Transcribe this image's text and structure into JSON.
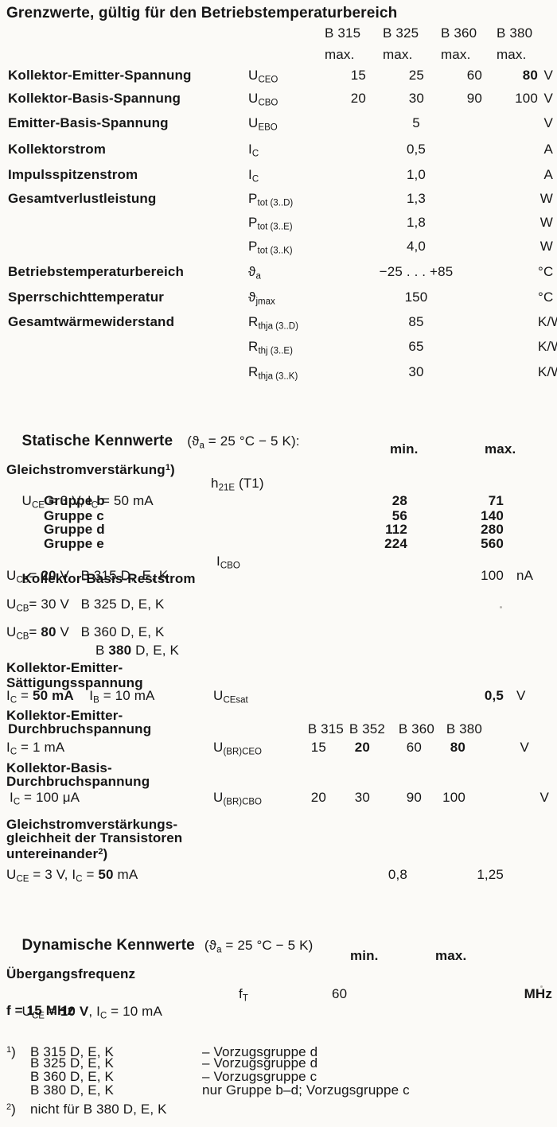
{
  "g": {
    "title": "Grenzwerte, gültig für den Betriebstemperaturbereich",
    "cols": [
      "B 315",
      "B 325",
      "B 360",
      "B 380"
    ],
    "max_labels": [
      "max.",
      "max.",
      "max.",
      "max."
    ],
    "rows": [
      {
        "label": "Kollektor-Emitter-Spannung",
        "sym": "U_{CEO}",
        "v1": "15",
        "v2": "25",
        "v3": "60",
        "v4": "*{80}",
        "unit": "V"
      },
      {
        "label": "Kollektor-Basis-Spannung",
        "sym": "U_{CBO}",
        "v1": "20",
        "v2": "30",
        "v3": "90",
        "v4": "100",
        "unit": "V"
      },
      {
        "label": "Emitter-Basis-Spannung",
        "sym": "U_{EBO}",
        "c": "5",
        "unit": "V"
      },
      {
        "label": "Kollektorstrom",
        "sym": "I_{C}",
        "c": "0,5",
        "unit": "A"
      },
      {
        "label": "Impulsspitzenstrom",
        "sym": "I_{C}",
        "c": "1,0",
        "unit": "A"
      },
      {
        "label": "Gesamtverlustleistung",
        "sym": "P_{tot (3..D)}",
        "c": "1,3",
        "unit": "W"
      },
      {
        "label": "",
        "sym": "P_{tot (3..E)}",
        "c": "1,8",
        "unit": "W"
      },
      {
        "label": "",
        "sym": "P_{tot (3..K)}",
        "c": "4,0",
        "unit": "W"
      },
      {
        "label": "Betriebstemperaturbereich",
        "sym": "ϑ_{a}",
        "c": "−25 . . . +85",
        "unit": "°C"
      },
      {
        "label": "Sperrschichttemperatur",
        "sym": "ϑ_{jmax}",
        "c": "150",
        "unit": "°C"
      },
      {
        "label": "Gesamtwärmewiderstand",
        "sym": "R_{thja (3..D)}",
        "c": "85",
        "unit": "K/W"
      },
      {
        "label": "",
        "sym": "R_{thj (3..E)}",
        "c": "65",
        "unit": "K/W"
      },
      {
        "label": "",
        "sym": "R_{thja (3..K)}",
        "c": "30",
        "unit": "K/W"
      }
    ]
  },
  "s": {
    "title_b": "Statische Kennwerte",
    "title_r": "(ϑ_{a} = 25 °C − 5 K):",
    "minmax": {
      "min": "min.",
      "max": "max."
    },
    "h21": {
      "label": "Gleichstromverstärkung^{1})",
      "cond": "U_{CE} = 3 V, I_{C} = 50 mA",
      "sym": "h_{21E} (T1)",
      "groups": [
        {
          "name": "Gruppe b",
          "min": "28",
          "max": "71"
        },
        {
          "name": "Gruppe c",
          "min": "56",
          "max": "140"
        },
        {
          "name": "Gruppe d",
          "min": "112",
          "max": "280"
        },
        {
          "name": "Gruppe e",
          "min": "224",
          "max": "560"
        }
      ]
    },
    "icbo": {
      "label": "Kollektor-Basis-Reststrom",
      "sym": "I_{CBO}",
      "cond1": "U_{CB}= *{20} V   B 315 D,  E, K",
      "cond2": "U_{CB}= 30 V   B 325 D, E, K",
      "cond3": "U_{CB}= *{80} V   B 360 D, E, K",
      "cond4": "B *{380} D, E, K",
      "value": "100",
      "unit": "nA"
    },
    "ucesat": {
      "label1": "Kollektor-Emitter-",
      "label2": "Sättigungsspannung",
      "cond": "I_{C} = *{50 mA}    I_{B} = 10 mA",
      "sym": "U_{CEsat}",
      "value": "*{0,5}",
      "unit": "V"
    },
    "brceo": {
      "label1": "Kollektor-Emitter-",
      "label2": "Durchbruchspannung",
      "cols": [
        "B 315",
        "B 352",
        "B 360",
        "B 380"
      ],
      "cond": "I_{C} = 1 mA",
      "sym": "U_{(BR)CEO}",
      "v1": "15",
      "v2": "*{20}",
      "v3": "60",
      "v4": "*{80}",
      "unit": "V"
    },
    "brcbo": {
      "label1": "Kollektor-Basis-",
      "label2": "Durchbruchspannung",
      "cond": "I_{C} = 100 μA",
      "sym": "U_{(BR)CBO}",
      "v1": "20",
      "v2": "30",
      "v3": "90",
      "v4": "100",
      "unit": "V"
    },
    "match": {
      "label1": "Gleichstromverstärkungs-",
      "label2": "gleichheit der Transistoren",
      "label3": "untereinander^{2})",
      "cond": "U_{CE} = 3 V, I_{C} = *{50} mA",
      "min": "0,8",
      "max": "1,25"
    }
  },
  "d": {
    "title_b": "Dynamische Kennwerte",
    "title_r": "(ϑ_{a} = 25 °C − 5 K)",
    "minmax": {
      "min": "min.",
      "max": "max."
    },
    "ft": {
      "label": "Übergangsfrequenz",
      "cond": "U_{CE} = *{10 V}, I_{C} = 10 mA",
      "sym": "f_{T}",
      "min": "60",
      "unit": "MHz",
      "cond2": "f = 15 MHz"
    }
  },
  "fn": {
    "m1": "^{1})",
    "m2": "^{2})",
    "items": [
      {
        "part": "B 315 D, E, K",
        "desc": "– Vorzugsgruppe d"
      },
      {
        "part": "B 325 D, E, K",
        "desc": "– Vorzugsgruppe d"
      },
      {
        "part": "B 360 D, E, K",
        "desc": "– Vorzugsgruppe c"
      },
      {
        "part": "B 380 D, E, K",
        "desc": "nur Gruppe b–d; Vorzugsgruppe c"
      }
    ],
    "note2": "nicht für B 380 D, E, K"
  }
}
